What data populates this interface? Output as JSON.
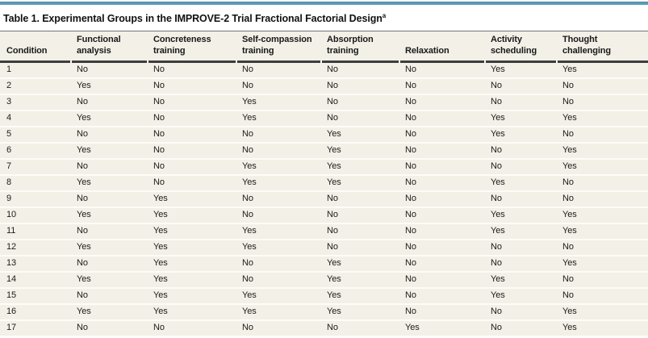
{
  "table": {
    "title": "Table 1. Experimental Groups in the IMPROVE-2 Trial Fractional Factorial Design",
    "title_footnote_marker": "a",
    "columns": [
      "Condition",
      "Functional analysis",
      "Concreteness training",
      "Self-compassion training",
      "Absorption training",
      "Relaxation",
      "Activity scheduling",
      "Thought challenging"
    ],
    "rows": [
      [
        "1",
        "No",
        "No",
        "No",
        "No",
        "No",
        "Yes",
        "Yes"
      ],
      [
        "2",
        "Yes",
        "No",
        "No",
        "No",
        "No",
        "No",
        "No"
      ],
      [
        "3",
        "No",
        "No",
        "Yes",
        "No",
        "No",
        "No",
        "No"
      ],
      [
        "4",
        "Yes",
        "No",
        "Yes",
        "No",
        "No",
        "Yes",
        "Yes"
      ],
      [
        "5",
        "No",
        "No",
        "No",
        "Yes",
        "No",
        "Yes",
        "No"
      ],
      [
        "6",
        "Yes",
        "No",
        "No",
        "Yes",
        "No",
        "No",
        "Yes"
      ],
      [
        "7",
        "No",
        "No",
        "Yes",
        "Yes",
        "No",
        "No",
        "Yes"
      ],
      [
        "8",
        "Yes",
        "No",
        "Yes",
        "Yes",
        "No",
        "Yes",
        "No"
      ],
      [
        "9",
        "No",
        "Yes",
        "No",
        "No",
        "No",
        "No",
        "No"
      ],
      [
        "10",
        "Yes",
        "Yes",
        "No",
        "No",
        "No",
        "Yes",
        "Yes"
      ],
      [
        "11",
        "No",
        "Yes",
        "Yes",
        "No",
        "No",
        "Yes",
        "Yes"
      ],
      [
        "12",
        "Yes",
        "Yes",
        "Yes",
        "No",
        "No",
        "No",
        "No"
      ],
      [
        "13",
        "No",
        "Yes",
        "No",
        "Yes",
        "No",
        "No",
        "Yes"
      ],
      [
        "14",
        "Yes",
        "Yes",
        "No",
        "Yes",
        "No",
        "Yes",
        "No"
      ],
      [
        "15",
        "No",
        "Yes",
        "Yes",
        "Yes",
        "No",
        "Yes",
        "No"
      ],
      [
        "16",
        "Yes",
        "Yes",
        "Yes",
        "Yes",
        "No",
        "No",
        "Yes"
      ],
      [
        "17",
        "No",
        "No",
        "No",
        "No",
        "Yes",
        "No",
        "Yes"
      ]
    ],
    "colors": {
      "accent_bar": "#5b9cb8",
      "row_background": "#f2f0e7",
      "row_separator": "#fdfcf8",
      "header_rule": "#3d3d3d",
      "title_rule": "#757575",
      "text": "#1c1c1c"
    }
  }
}
